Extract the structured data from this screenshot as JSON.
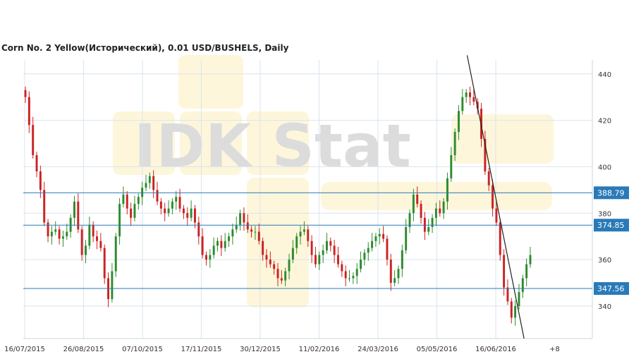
{
  "chart_data": {
    "type": "candlestick",
    "title": "Corn  No. 2 Yellow(Исторический), 0.01 USD/BUSHELS, Daily",
    "watermark": "IDK Stat",
    "xlabel": "",
    "ylabel": "",
    "ylim": [
      326,
      446
    ],
    "y_ticks": [
      340,
      360,
      380,
      400,
      420,
      440
    ],
    "x_tick_labels": [
      "16/07/2015",
      "26/08/2015",
      "07/10/2015",
      "17/11/2015",
      "30/12/2015",
      "11/02/2016",
      "24/03/2016",
      "05/05/2016",
      "16/06/2016",
      "+8"
    ],
    "grid": true,
    "colors": {
      "up": "#2e8b2e",
      "down": "#cc2222",
      "level_line": "#2a7ab8",
      "level_label_bg": "#2a7ab8",
      "trendline": "#222222"
    },
    "levels": [
      388.79,
      374.85,
      347.56
    ],
    "level_labels": [
      "388.79",
      "374.85",
      "347.56"
    ],
    "trendline": {
      "start": {
        "index": 0.78,
        "value": 448
      },
      "end": {
        "index": 0.88,
        "value": 326
      }
    },
    "closes": [
      430,
      418,
      405,
      398,
      390,
      376,
      370,
      372,
      373,
      369,
      370,
      372,
      378,
      385,
      373,
      362,
      366,
      375,
      370,
      368,
      365,
      352,
      343,
      355,
      370,
      384,
      388,
      382,
      378,
      384,
      387,
      391,
      393,
      396,
      390,
      385,
      382,
      380,
      382,
      385,
      387,
      382,
      380,
      378,
      382,
      376,
      370,
      362,
      360,
      362,
      366,
      368,
      365,
      368,
      370,
      373,
      375,
      380,
      376,
      373,
      372,
      372,
      368,
      362,
      360,
      358,
      356,
      352,
      351,
      355,
      360,
      365,
      370,
      372,
      373,
      368,
      362,
      358,
      362,
      364,
      368,
      366,
      362,
      358,
      355,
      352,
      352,
      353,
      356,
      360,
      363,
      365,
      368,
      370,
      371,
      369,
      360,
      350,
      352,
      356,
      364,
      374,
      380,
      388,
      384,
      378,
      372,
      374,
      378,
      382,
      380,
      385,
      395,
      405,
      415,
      424,
      430,
      432,
      430,
      428,
      425,
      412,
      398,
      392,
      382,
      376,
      362,
      348,
      342,
      335,
      340,
      346,
      352,
      358,
      362
    ]
  }
}
